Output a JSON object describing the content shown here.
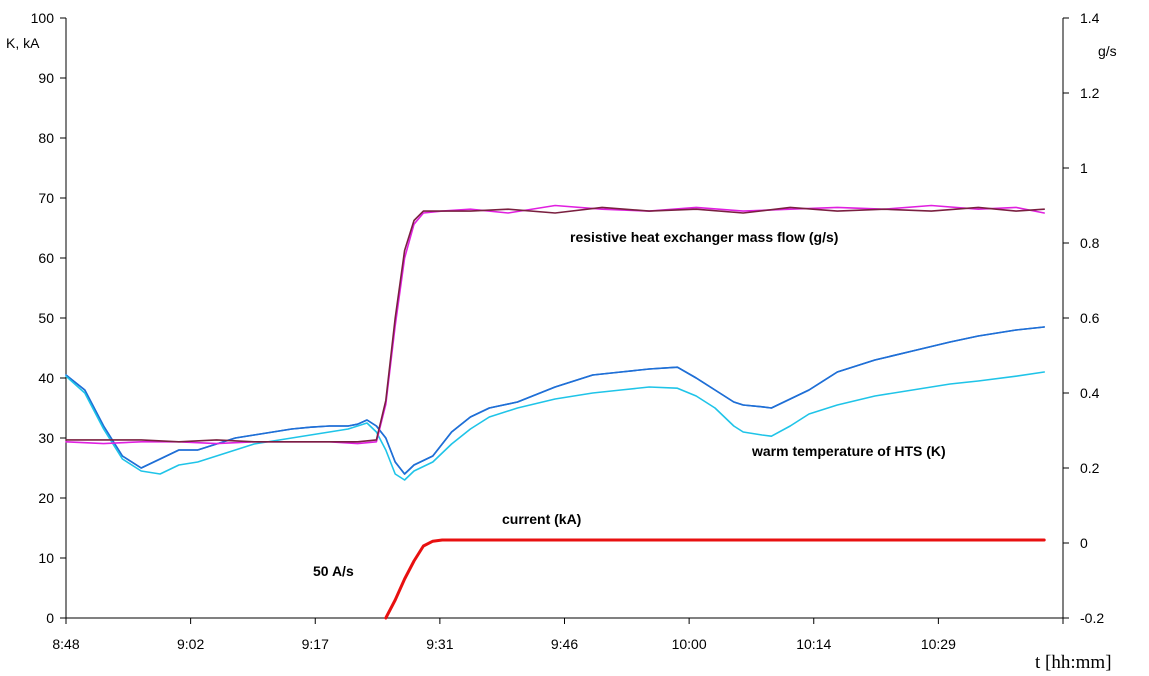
{
  "chart_data": {
    "type": "line",
    "xlabel": "t [hh:mm]",
    "ylabel": "K, kA",
    "y2label": "g/s",
    "xlim_minutes": [
      528,
      634
    ],
    "ylim": [
      0,
      100
    ],
    "y2lim": [
      -0.2,
      1.4
    ],
    "x_ticks": [
      "8:48",
      "9:02",
      "9:17",
      "9:31",
      "9:46",
      "10:00",
      "10:14",
      "10:29"
    ],
    "y_ticks": [
      "0",
      "10",
      "20",
      "30",
      "40",
      "50",
      "60",
      "70",
      "80",
      "90",
      "100"
    ],
    "y2_ticks": [
      "-0.2",
      "0",
      "0.2",
      "0.4",
      "0.6",
      "0.8",
      "1",
      "1.2",
      "1.4"
    ],
    "grid": false,
    "annotations": [
      {
        "text": "resistive heat exchanger mass flow (g/s)",
        "series": "mass flow"
      },
      {
        "text": "warm temperature of HTS (K)",
        "series": "HTS temperature"
      },
      {
        "text": "current (kA)",
        "series": "current"
      },
      {
        "text": "50 A/s",
        "series": "current ramp"
      }
    ],
    "series": [
      {
        "axis": "left",
        "color": "#1f6fd6",
        "x": [
          "8:48",
          "8:50",
          "8:52",
          "8:54",
          "8:56",
          "8:58",
          "9:00",
          "9:02",
          "9:04",
          "9:06",
          "9:08",
          "9:10",
          "9:12",
          "9:14",
          "9:16",
          "9:18",
          "9:19",
          "9:20",
          "9:21",
          "9:22",
          "9:23",
          "9:24",
          "9:25",
          "9:27",
          "9:29",
          "9:31",
          "9:33",
          "9:36",
          "9:40",
          "9:44",
          "9:47",
          "9:50",
          "9:53",
          "9:55",
          "9:57",
          "9:59",
          "10:00",
          "10:02",
          "10:03",
          "10:05",
          "10:07",
          "10:10",
          "10:14",
          "10:18",
          "10:22",
          "10:25",
          "10:29",
          "10:32"
        ],
        "values": [
          40.5,
          38,
          32,
          27,
          25,
          26.5,
          28,
          28,
          29,
          30,
          30.5,
          31,
          31.5,
          31.8,
          32,
          32,
          32.3,
          33,
          32,
          30,
          26,
          24,
          25.5,
          27,
          31,
          33.5,
          35,
          36,
          38.5,
          40.5,
          41,
          41.5,
          41.8,
          40,
          38,
          36,
          35.5,
          35.2,
          35,
          36.5,
          38,
          41,
          43,
          44.5,
          46,
          47,
          48,
          48.5
        ]
      },
      {
        "axis": "left",
        "color": "#1f6fd6",
        "x": [
          "8:48",
          "8:50",
          "8:52",
          "8:54",
          "8:56",
          "8:58",
          "9:00",
          "9:02",
          "9:04",
          "9:06",
          "9:08",
          "9:10",
          "9:12",
          "9:14",
          "9:16",
          "9:18",
          "9:19",
          "9:20",
          "9:21",
          "9:22",
          "9:23",
          "9:24",
          "9:25",
          "9:27",
          "9:29",
          "9:31",
          "9:33",
          "9:36",
          "9:40",
          "9:44",
          "9:47",
          "9:50",
          "9:53",
          "9:55",
          "9:57",
          "9:59",
          "10:00",
          "10:02",
          "10:03",
          "10:05",
          "10:07",
          "10:10",
          "10:14",
          "10:18",
          "10:22",
          "10:25",
          "10:29",
          "10:32"
        ],
        "values": [
          40.5,
          38,
          32,
          27,
          25,
          26.5,
          28,
          28,
          29,
          30,
          30.5,
          31,
          31.5,
          31.8,
          32,
          32,
          32.3,
          33,
          32,
          30,
          26,
          24,
          25.5,
          27,
          31,
          33.5,
          35,
          36,
          38.5,
          40.5,
          41,
          41.5,
          41.8,
          40,
          38,
          36,
          35.5,
          35.2,
          35,
          36.5,
          38,
          41,
          43,
          44.5,
          46,
          47,
          48,
          48.5
        ]
      },
      {
        "axis": "left",
        "color": "#1fc4e8",
        "x": [
          "8:48",
          "8:50",
          "8:52",
          "8:54",
          "8:56",
          "8:58",
          "9:00",
          "9:02",
          "9:04",
          "9:06",
          "9:08",
          "9:10",
          "9:12",
          "9:14",
          "9:16",
          "9:18",
          "9:19",
          "9:20",
          "9:21",
          "9:22",
          "9:23",
          "9:24",
          "9:25",
          "9:27",
          "9:29",
          "9:31",
          "9:33",
          "9:36",
          "9:40",
          "9:44",
          "9:47",
          "9:50",
          "9:53",
          "9:55",
          "9:57",
          "9:59",
          "10:00",
          "10:02",
          "10:03",
          "10:05",
          "10:07",
          "10:10",
          "10:14",
          "10:18",
          "10:22",
          "10:25",
          "10:29",
          "10:32"
        ],
        "values": [
          40.3,
          37.5,
          31.5,
          26.5,
          24.5,
          24,
          25.5,
          26,
          27,
          28,
          29,
          29.5,
          30,
          30.5,
          31,
          31.5,
          32,
          32.5,
          31,
          28,
          24,
          23,
          24.5,
          26,
          29,
          31.5,
          33.5,
          35,
          36.5,
          37.5,
          38,
          38.5,
          38.3,
          37,
          35,
          32,
          31,
          30.5,
          30.3,
          32,
          34,
          35.5,
          37,
          38,
          39,
          39.5,
          40.3,
          41
        ]
      },
      {
        "axis": "right",
        "color": "#e020e0",
        "x": [
          "8:48",
          "8:52",
          "8:56",
          "9:00",
          "9:04",
          "9:08",
          "9:12",
          "9:16",
          "9:19",
          "9:21",
          "9:22",
          "9:23",
          "9:24",
          "9:25",
          "9:26",
          "9:28",
          "9:31",
          "9:35",
          "9:40",
          "9:45",
          "9:50",
          "9:55",
          "10:00",
          "10:05",
          "10:10",
          "10:15",
          "10:20",
          "10:25",
          "10:29",
          "10:32"
        ],
        "values": [
          0.27,
          0.265,
          0.27,
          0.27,
          0.265,
          0.27,
          0.27,
          0.27,
          0.265,
          0.27,
          0.37,
          0.58,
          0.76,
          0.85,
          0.88,
          0.885,
          0.89,
          0.88,
          0.9,
          0.89,
          0.885,
          0.895,
          0.885,
          0.89,
          0.895,
          0.89,
          0.9,
          0.89,
          0.895,
          0.88
        ]
      },
      {
        "axis": "right",
        "color": "#7a2040",
        "x": [
          "8:48",
          "8:52",
          "8:56",
          "9:00",
          "9:04",
          "9:08",
          "9:12",
          "9:16",
          "9:19",
          "9:21",
          "9:22",
          "9:23",
          "9:24",
          "9:25",
          "9:26",
          "9:28",
          "9:31",
          "9:35",
          "9:40",
          "9:45",
          "9:50",
          "9:55",
          "10:00",
          "10:05",
          "10:10",
          "10:15",
          "10:20",
          "10:25",
          "10:29",
          "10:32"
        ],
        "values": [
          0.275,
          0.275,
          0.275,
          0.27,
          0.275,
          0.27,
          0.27,
          0.27,
          0.27,
          0.275,
          0.38,
          0.6,
          0.78,
          0.86,
          0.885,
          0.885,
          0.885,
          0.89,
          0.88,
          0.895,
          0.885,
          0.89,
          0.88,
          0.895,
          0.885,
          0.89,
          0.885,
          0.895,
          0.885,
          0.89
        ]
      },
      {
        "axis": "left",
        "color": "#e81010",
        "x": [
          "9:22",
          "9:23",
          "9:24",
          "9:25",
          "9:26",
          "9:27",
          "9:28",
          "9:31",
          "9:40",
          "9:50",
          "10:00",
          "10:10",
          "10:20",
          "10:32"
        ],
        "values": [
          0,
          3,
          6.5,
          9.5,
          12,
          12.8,
          13,
          13,
          13,
          13,
          13,
          13,
          13,
          13
        ]
      }
    ]
  }
}
